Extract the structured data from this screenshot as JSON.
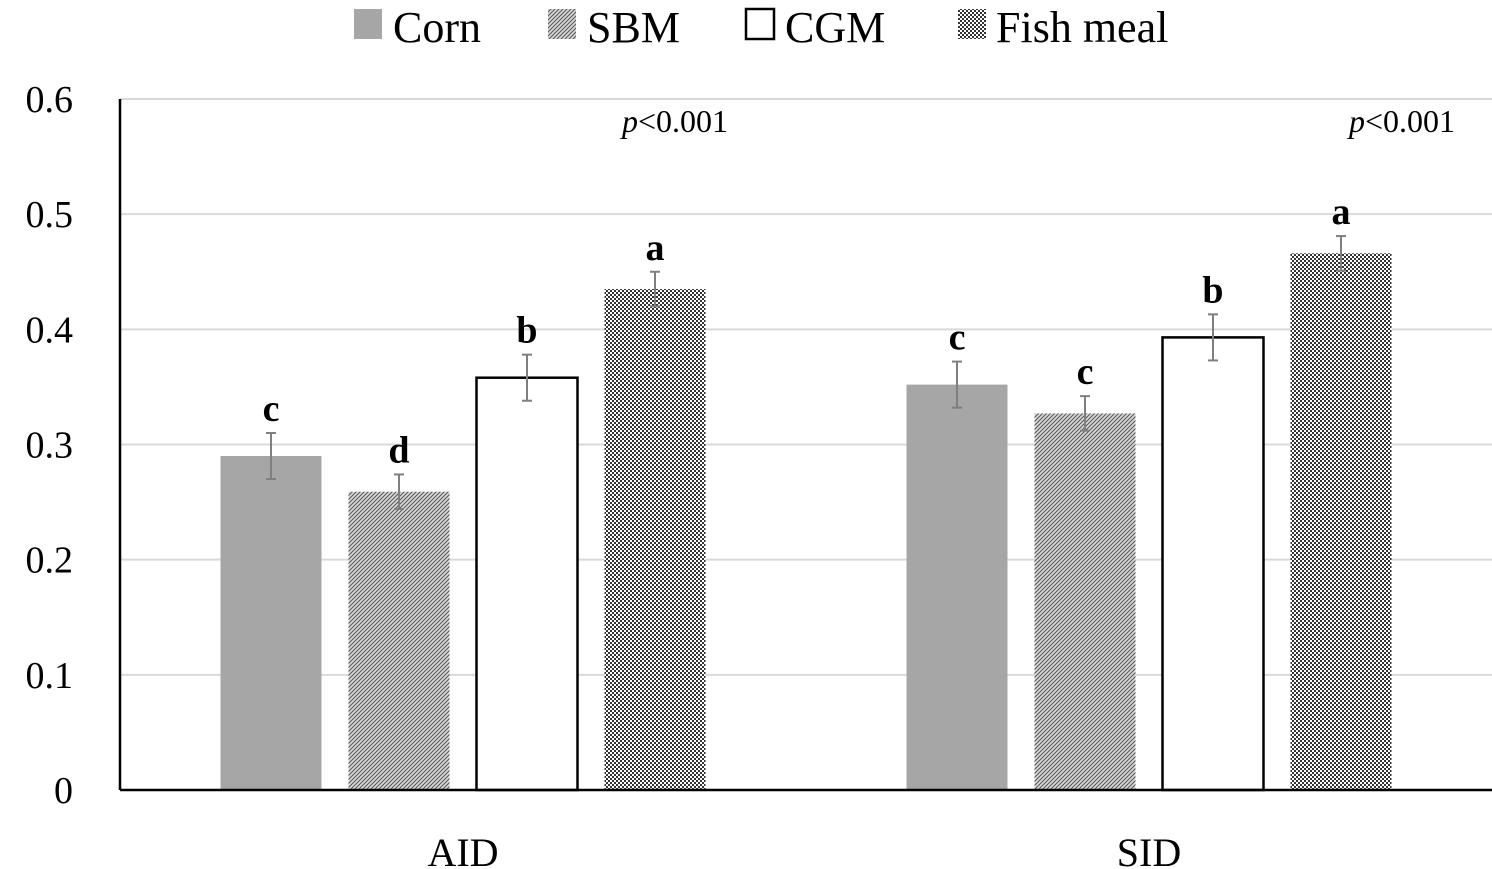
{
  "chart_data": {
    "type": "bar",
    "categories": [
      "AID",
      "SID"
    ],
    "series": [
      {
        "name": "Corn",
        "values": [
          0.29,
          0.352
        ],
        "errors": [
          0.02,
          0.02
        ],
        "letters": [
          "c",
          "c"
        ],
        "fill": "solid",
        "color": "#a6a6a6"
      },
      {
        "name": "SBM",
        "values": [
          0.259,
          0.327
        ],
        "errors": [
          0.015,
          0.015
        ],
        "letters": [
          "d",
          "c"
        ],
        "fill": "hatch",
        "color": "#7f7f7f"
      },
      {
        "name": "CGM",
        "values": [
          0.358,
          0.393
        ],
        "errors": [
          0.02,
          0.02
        ],
        "letters": [
          "b",
          "b"
        ],
        "fill": "none",
        "color": "#ffffff"
      },
      {
        "name": "Fish meal",
        "values": [
          0.435,
          0.466
        ],
        "errors": [
          0.015,
          0.015
        ],
        "letters": [
          "a",
          "a"
        ],
        "fill": "checker",
        "color": "#404040"
      }
    ],
    "annotations": [
      {
        "category": "AID",
        "p_symbol": "p",
        "p_value": "<0.001"
      },
      {
        "category": "SID",
        "p_symbol": "p",
        "p_value": "<0.001"
      }
    ],
    "yticks": [
      "0",
      "0.1",
      "0.2",
      "0.3",
      "0.4",
      "0.5",
      "0.6"
    ],
    "ylim": [
      0,
      0.6
    ],
    "grid": true,
    "legend_position": "top"
  }
}
